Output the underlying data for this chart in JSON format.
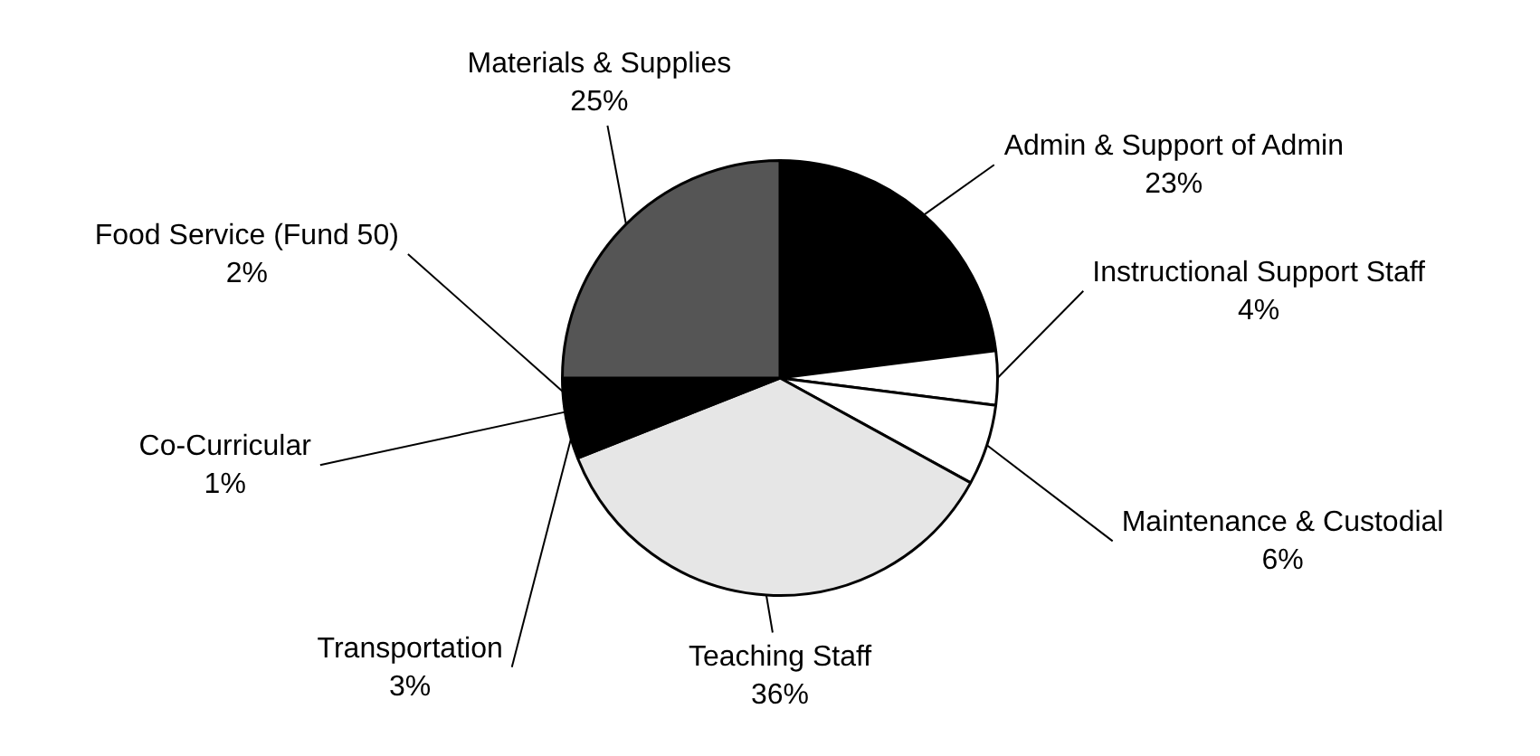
{
  "chart_data": {
    "type": "pie",
    "categories": [
      "Admin & Support of Admin",
      "Instructional Support Staff",
      "Maintenance & Custodial",
      "Teaching Staff",
      "Transportation",
      "Co-Curricular",
      "Food Service (Fund 50)",
      "Materials & Supplies"
    ],
    "values": [
      23,
      4,
      6,
      36,
      3,
      1,
      2,
      25
    ],
    "value_labels": [
      "23%",
      "4%",
      "6%",
      "36%",
      "3%",
      "1%",
      "2%",
      "25%"
    ],
    "colors": [
      "#000000",
      "#ffffff",
      "#ffffff",
      "#e6e6e6",
      "#000000",
      "#000000",
      "#000000",
      "#555555"
    ],
    "legend": false
  }
}
